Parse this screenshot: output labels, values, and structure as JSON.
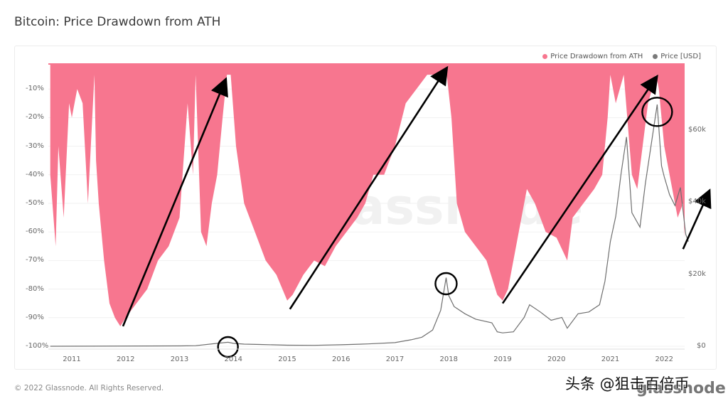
{
  "title": "Bitcoin: Price Drawdown from ATH",
  "legend": [
    {
      "label": "Price Drawdown from ATH",
      "color": "#f7768f"
    },
    {
      "label": "Price [USD]",
      "color": "#7a7a7a"
    }
  ],
  "footer": "© 2022 Glassnode. All Rights Reserved.",
  "watermark": "头条 @狙击百倍币",
  "watermark_logo": "glassnode",
  "background_logo": "glassnode",
  "colors": {
    "drawdown": "#f7768f",
    "price": "#6f6f6f",
    "annotation": "#000000",
    "grid": "#f1f1f1"
  },
  "chart_data": {
    "type": "area",
    "title": "Bitcoin: Price Drawdown from ATH",
    "xlabel": "",
    "ylabel_left": "Price Drawdown from ATH (%)",
    "ylabel_right": "Price [USD]",
    "y_left_ticks": [
      "-10%",
      "-20%",
      "-30%",
      "-40%",
      "-50%",
      "-60%",
      "-70%",
      "-80%",
      "-90%",
      "-100%"
    ],
    "y_left_range": [
      -100,
      0
    ],
    "y_right_ticks": [
      "$60k",
      "$40k",
      "$20k",
      "$0"
    ],
    "y_right_range": [
      0,
      76000
    ],
    "x_ticks": [
      "2011",
      "2012",
      "2013",
      "2014",
      "2015",
      "2016",
      "2017",
      "2018",
      "2019",
      "2020",
      "2021",
      "2022"
    ],
    "legend_position": "top-right",
    "grid": true,
    "series": [
      {
        "name": "Price Drawdown from ATH",
        "type": "area",
        "x": [
          2010.6,
          2010.7,
          2010.75,
          2010.85,
          2010.95,
          2011.0,
          2011.1,
          2011.2,
          2011.3,
          2011.42,
          2011.45,
          2011.5,
          2011.6,
          2011.7,
          2011.8,
          2011.9,
          2012.0,
          2012.2,
          2012.4,
          2012.6,
          2012.8,
          2013.0,
          2013.15,
          2013.25,
          2013.3,
          2013.4,
          2013.5,
          2013.6,
          2013.7,
          2013.8,
          2013.88,
          2013.95,
          2014.05,
          2014.2,
          2014.4,
          2014.6,
          2014.8,
          2015.0,
          2015.1,
          2015.3,
          2015.5,
          2015.7,
          2015.9,
          2016.1,
          2016.3,
          2016.45,
          2016.6,
          2016.8,
          2017.0,
          2017.2,
          2017.4,
          2017.6,
          2017.8,
          2017.95,
          2018.05,
          2018.15,
          2018.3,
          2018.5,
          2018.7,
          2018.9,
          2019.0,
          2019.1,
          2019.3,
          2019.45,
          2019.6,
          2019.8,
          2020.0,
          2020.2,
          2020.3,
          2020.5,
          2020.7,
          2020.85,
          2020.95,
          2021.0,
          2021.1,
          2021.25,
          2021.4,
          2021.5,
          2021.6,
          2021.7,
          2021.85,
          2021.9,
          2022.0,
          2022.1,
          2022.25,
          2022.35,
          2022.45
        ],
        "values": [
          -40,
          -65,
          -30,
          -55,
          -15,
          -20,
          -10,
          -15,
          -50,
          -5,
          -35,
          -50,
          -70,
          -85,
          -90,
          -93,
          -90,
          -85,
          -80,
          -70,
          -65,
          -55,
          -15,
          -40,
          -5,
          -60,
          -65,
          -50,
          -40,
          -20,
          -5,
          -5,
          -30,
          -50,
          -60,
          -70,
          -75,
          -84,
          -82,
          -75,
          -70,
          -72,
          -65,
          -60,
          -55,
          -50,
          -40,
          -40,
          -30,
          -15,
          -10,
          -5,
          -5,
          -3,
          -20,
          -50,
          -60,
          -65,
          -70,
          -82,
          -84,
          -80,
          -60,
          -45,
          -50,
          -60,
          -62,
          -70,
          -55,
          -50,
          -45,
          -40,
          -20,
          -5,
          -15,
          -5,
          -40,
          -45,
          -30,
          -15,
          -5,
          -10,
          -30,
          -40,
          -55,
          -50,
          -62
        ]
      },
      {
        "name": "Price [USD]",
        "type": "line",
        "x": [
          2010.6,
          2013.0,
          2013.3,
          2013.7,
          2013.9,
          2014.0,
          2014.2,
          2014.5,
          2015.0,
          2015.5,
          2016.0,
          2016.5,
          2017.0,
          2017.3,
          2017.5,
          2017.7,
          2017.85,
          2017.95,
          2018.0,
          2018.1,
          2018.3,
          2018.5,
          2018.8,
          2018.9,
          2019.0,
          2019.2,
          2019.4,
          2019.5,
          2019.7,
          2019.9,
          2020.1,
          2020.2,
          2020.4,
          2020.6,
          2020.8,
          2020.9,
          2021.0,
          2021.1,
          2021.2,
          2021.3,
          2021.4,
          2021.55,
          2021.65,
          2021.8,
          2021.87,
          2021.95,
          2022.0,
          2022.1,
          2022.2,
          2022.3,
          2022.4,
          2022.45
        ],
        "values": [
          0,
          100,
          150,
          800,
          1100,
          800,
          600,
          500,
          300,
          250,
          420,
          650,
          1000,
          1800,
          2500,
          4500,
          10000,
          19000,
          14000,
          11000,
          9000,
          7500,
          6500,
          4000,
          3700,
          4000,
          8000,
          11500,
          9500,
          7200,
          8000,
          5000,
          9000,
          9500,
          11500,
          18000,
          29000,
          36000,
          48000,
          58000,
          37000,
          33000,
          45000,
          60000,
          67000,
          50000,
          47000,
          42000,
          39000,
          44000,
          31000,
          29000
        ]
      }
    ],
    "annotations": [
      {
        "type": "arrow",
        "from": [
          2011.95,
          -93
        ],
        "to": [
          2013.85,
          -7
        ]
      },
      {
        "type": "arrow",
        "from": [
          2015.05,
          -87
        ],
        "to": [
          2017.95,
          -3
        ]
      },
      {
        "type": "arrow",
        "from": [
          2019.0,
          -85
        ],
        "to": [
          2021.85,
          -6
        ]
      },
      {
        "type": "arrow",
        "from": [
          2022.35,
          -66
        ],
        "to": [
          2022.83,
          -46
        ]
      },
      {
        "type": "circle",
        "at": [
          2013.9,
          -100
        ],
        "label": "2013 peak"
      },
      {
        "type": "circle",
        "at": [
          2017.95,
          -78
        ],
        "label": "2017 peak"
      },
      {
        "type": "circle",
        "at": [
          2021.87,
          -18
        ],
        "label": "2021 peak"
      }
    ]
  }
}
